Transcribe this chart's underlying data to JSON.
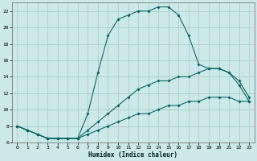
{
  "xlabel": "Humidex (Indice chaleur)",
  "background_color": "#cce8e8",
  "grid_color": "#aacccc",
  "line_color": "#006060",
  "xlim": [
    -0.5,
    23.5
  ],
  "ylim": [
    6,
    23
  ],
  "yticks": [
    6,
    8,
    10,
    12,
    14,
    16,
    18,
    20,
    22
  ],
  "xticks": [
    0,
    1,
    2,
    3,
    4,
    5,
    6,
    7,
    8,
    9,
    10,
    11,
    12,
    13,
    14,
    15,
    16,
    17,
    18,
    19,
    20,
    21,
    22,
    23
  ],
  "series": [
    {
      "x": [
        0,
        1,
        2,
        3,
        4,
        5,
        6,
        7,
        8,
        9,
        10,
        11,
        12,
        13,
        14,
        15,
        16,
        17,
        18,
        19,
        20,
        21,
        22,
        23
      ],
      "y": [
        8.0,
        7.5,
        7.0,
        6.5,
        6.5,
        6.5,
        6.5,
        9.5,
        14.5,
        19.0,
        21.0,
        21.5,
        22.0,
        22.0,
        22.5,
        22.5,
        21.5,
        19.0,
        15.5,
        15.0,
        15.0,
        14.5,
        13.0,
        11.0
      ]
    },
    {
      "x": [
        0,
        1,
        2,
        3,
        4,
        5,
        6,
        7,
        8,
        9,
        10,
        11,
        12,
        13,
        14,
        15,
        16,
        17,
        18,
        19,
        20,
        21,
        22,
        23
      ],
      "y": [
        8.0,
        7.5,
        7.0,
        6.5,
        6.5,
        6.5,
        6.5,
        7.5,
        8.5,
        9.5,
        10.5,
        11.5,
        12.5,
        13.0,
        13.5,
        13.5,
        14.0,
        14.0,
        14.5,
        15.0,
        15.0,
        14.5,
        13.5,
        11.5
      ]
    },
    {
      "x": [
        0,
        1,
        2,
        3,
        4,
        5,
        6,
        7,
        8,
        9,
        10,
        11,
        12,
        13,
        14,
        15,
        16,
        17,
        18,
        19,
        20,
        21,
        22,
        23
      ],
      "y": [
        8.0,
        7.5,
        7.0,
        6.5,
        6.5,
        6.5,
        6.5,
        7.0,
        7.5,
        8.0,
        8.5,
        9.0,
        9.5,
        9.5,
        10.0,
        10.5,
        10.5,
        11.0,
        11.0,
        11.5,
        11.5,
        11.5,
        11.0,
        11.0
      ]
    }
  ]
}
